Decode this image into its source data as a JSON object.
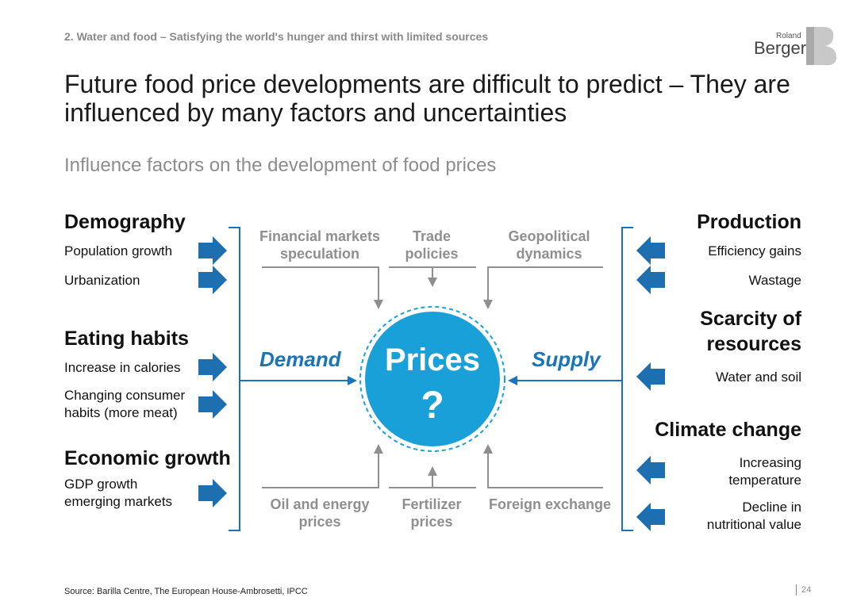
{
  "header": {
    "section": "2. Water and food – Satisfying the world's hunger and thirst with limited sources",
    "title": "Future food price developments are difficult to predict – They are influenced by many factors and uncertainties",
    "subtitle": "Influence factors on the development of food prices"
  },
  "logo": {
    "line1": "Roland",
    "line2": "Berger"
  },
  "left": {
    "groups": [
      {
        "title": "Demography",
        "items": [
          "Population growth",
          "Urbanization"
        ]
      },
      {
        "title": "Eating habits",
        "items": [
          "Increase in calories",
          "Changing consumer habits (more meat)"
        ]
      },
      {
        "title": "Economic growth",
        "items": [
          "GDP growth emerging markets"
        ]
      }
    ]
  },
  "right": {
    "groups": [
      {
        "title": "Production",
        "items": [
          "Efficiency gains",
          "Wastage"
        ]
      },
      {
        "title": "Scarcity of resources",
        "items": [
          "Water and soil"
        ]
      },
      {
        "title": "Climate change",
        "items": [
          "Increasing temperature",
          "Decline in nutritional value"
        ]
      }
    ]
  },
  "center": {
    "top": [
      "Financial markets speculation",
      "Trade policies",
      "Geopolitical dynamics"
    ],
    "bottom": [
      "Oil and energy prices",
      "Fertilizer prices",
      "Foreign exchange"
    ],
    "demand": "Demand",
    "supply": "Supply",
    "prices": "Prices",
    "question": "?"
  },
  "footer": {
    "source": "Source: Barilla Centre, The European House-Ambrosetti, IPCC",
    "page": "24"
  },
  "colors": {
    "blue": "#1a75b8",
    "circle": "#1aa0d8",
    "arrow": "#1d6fb0",
    "gray": "#8f8f8f"
  }
}
